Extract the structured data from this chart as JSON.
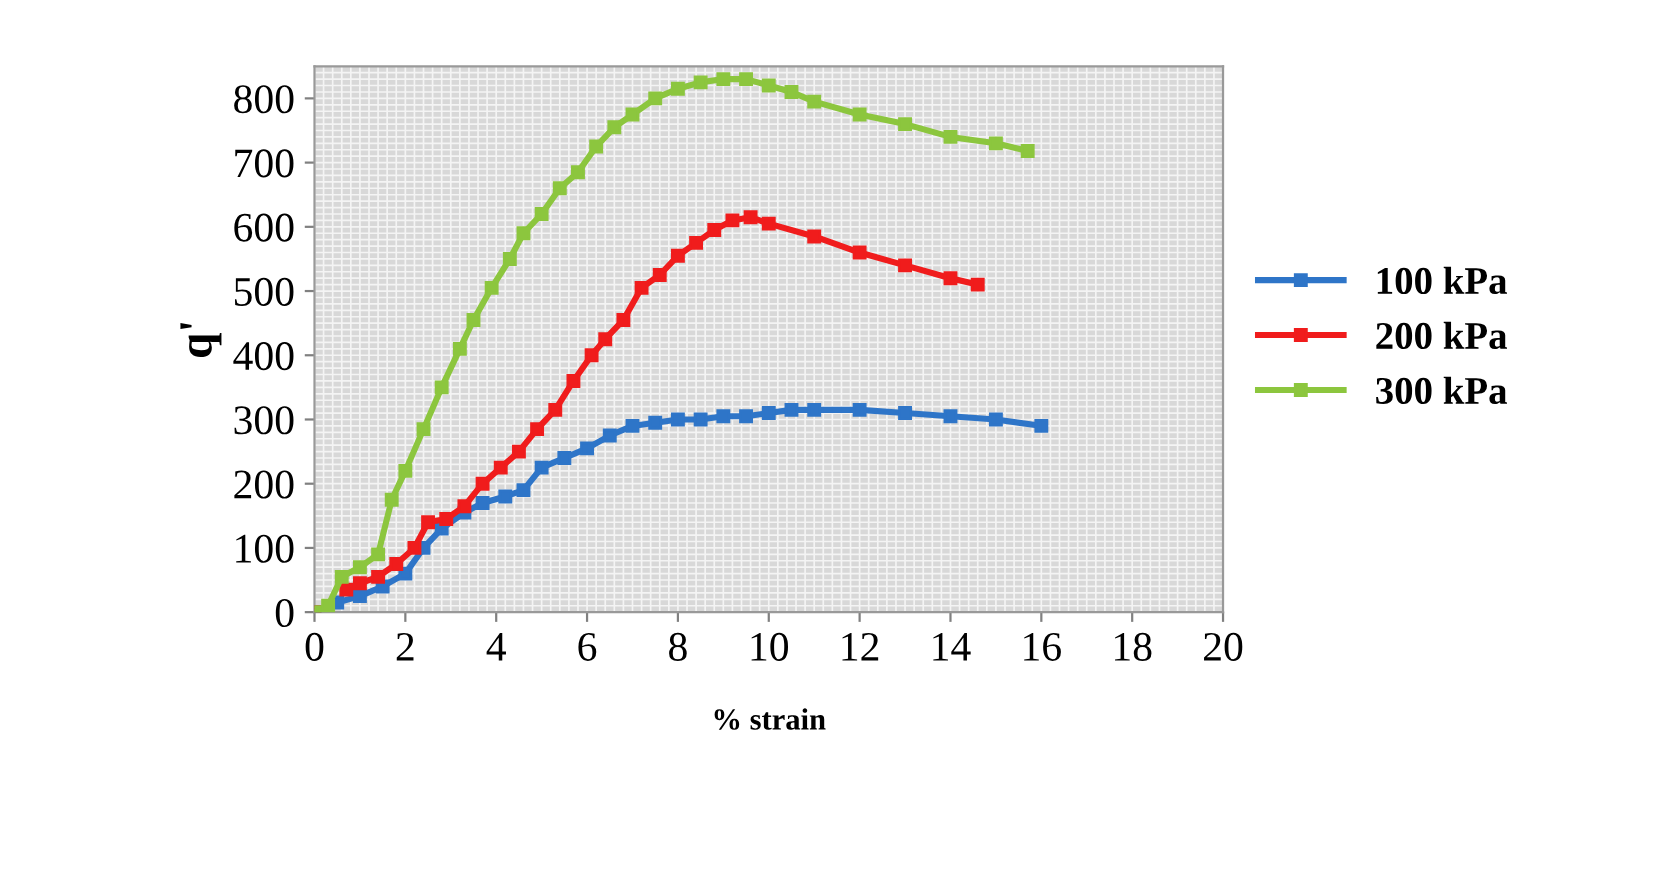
{
  "chart_data": {
    "type": "line",
    "xlabel": "% strain",
    "ylabel": "q'",
    "xlim": [
      0,
      20
    ],
    "ylim": [
      0,
      850
    ],
    "xticks": [
      0,
      2,
      4,
      6,
      8,
      10,
      12,
      14,
      16,
      18,
      20
    ],
    "yticks": [
      0,
      100,
      200,
      300,
      400,
      500,
      600,
      700,
      800
    ],
    "grid": true,
    "legend": "right",
    "marker": "square",
    "line_style": "solid",
    "series": [
      {
        "name": "100 kPa",
        "color": "#2e75c8",
        "x": [
          0,
          0.5,
          1,
          1.5,
          2,
          2.4,
          2.8,
          3.3,
          3.7,
          4.2,
          4.6,
          5,
          5.5,
          6,
          6.5,
          7,
          7.5,
          8,
          8.5,
          9,
          9.5,
          10,
          10.5,
          11,
          12,
          13,
          14,
          15,
          16
        ],
        "values": [
          0,
          15,
          25,
          40,
          60,
          100,
          130,
          155,
          170,
          180,
          190,
          225,
          240,
          255,
          275,
          290,
          295,
          300,
          300,
          305,
          305,
          310,
          315,
          315,
          315,
          310,
          305,
          300,
          290
        ]
      },
      {
        "name": "200 kPa",
        "color": "#f01c1c",
        "x": [
          0,
          0.3,
          0.7,
          1,
          1.4,
          1.8,
          2.2,
          2.5,
          2.9,
          3.3,
          3.7,
          4.1,
          4.5,
          4.9,
          5.3,
          5.7,
          6.1,
          6.4,
          6.8,
          7.2,
          7.6,
          8,
          8.4,
          8.8,
          9.2,
          9.6,
          10,
          11,
          12,
          13,
          14,
          14.6
        ],
        "values": [
          0,
          null,
          35,
          45,
          55,
          75,
          100,
          140,
          145,
          165,
          200,
          225,
          250,
          285,
          315,
          360,
          400,
          425,
          455,
          505,
          525,
          555,
          575,
          595,
          610,
          615,
          605,
          585,
          560,
          540,
          520,
          510
        ]
      },
      {
        "name": "300 kPa",
        "color": "#8cc63e",
        "x": [
          0,
          0.3,
          0.6,
          1,
          1.4,
          1.7,
          2,
          2.4,
          2.8,
          3.2,
          3.5,
          3.9,
          4.3,
          4.6,
          5,
          5.4,
          5.8,
          6.2,
          6.6,
          7,
          7.5,
          8,
          8.5,
          9,
          9.5,
          10,
          10.5,
          11,
          12,
          13,
          14,
          15,
          15.7
        ],
        "values": [
          0,
          10,
          55,
          70,
          90,
          175,
          220,
          285,
          350,
          410,
          455,
          505,
          550,
          590,
          620,
          660,
          685,
          725,
          755,
          775,
          800,
          815,
          825,
          830,
          830,
          820,
          810,
          795,
          775,
          760,
          740,
          730,
          718
        ]
      }
    ]
  }
}
